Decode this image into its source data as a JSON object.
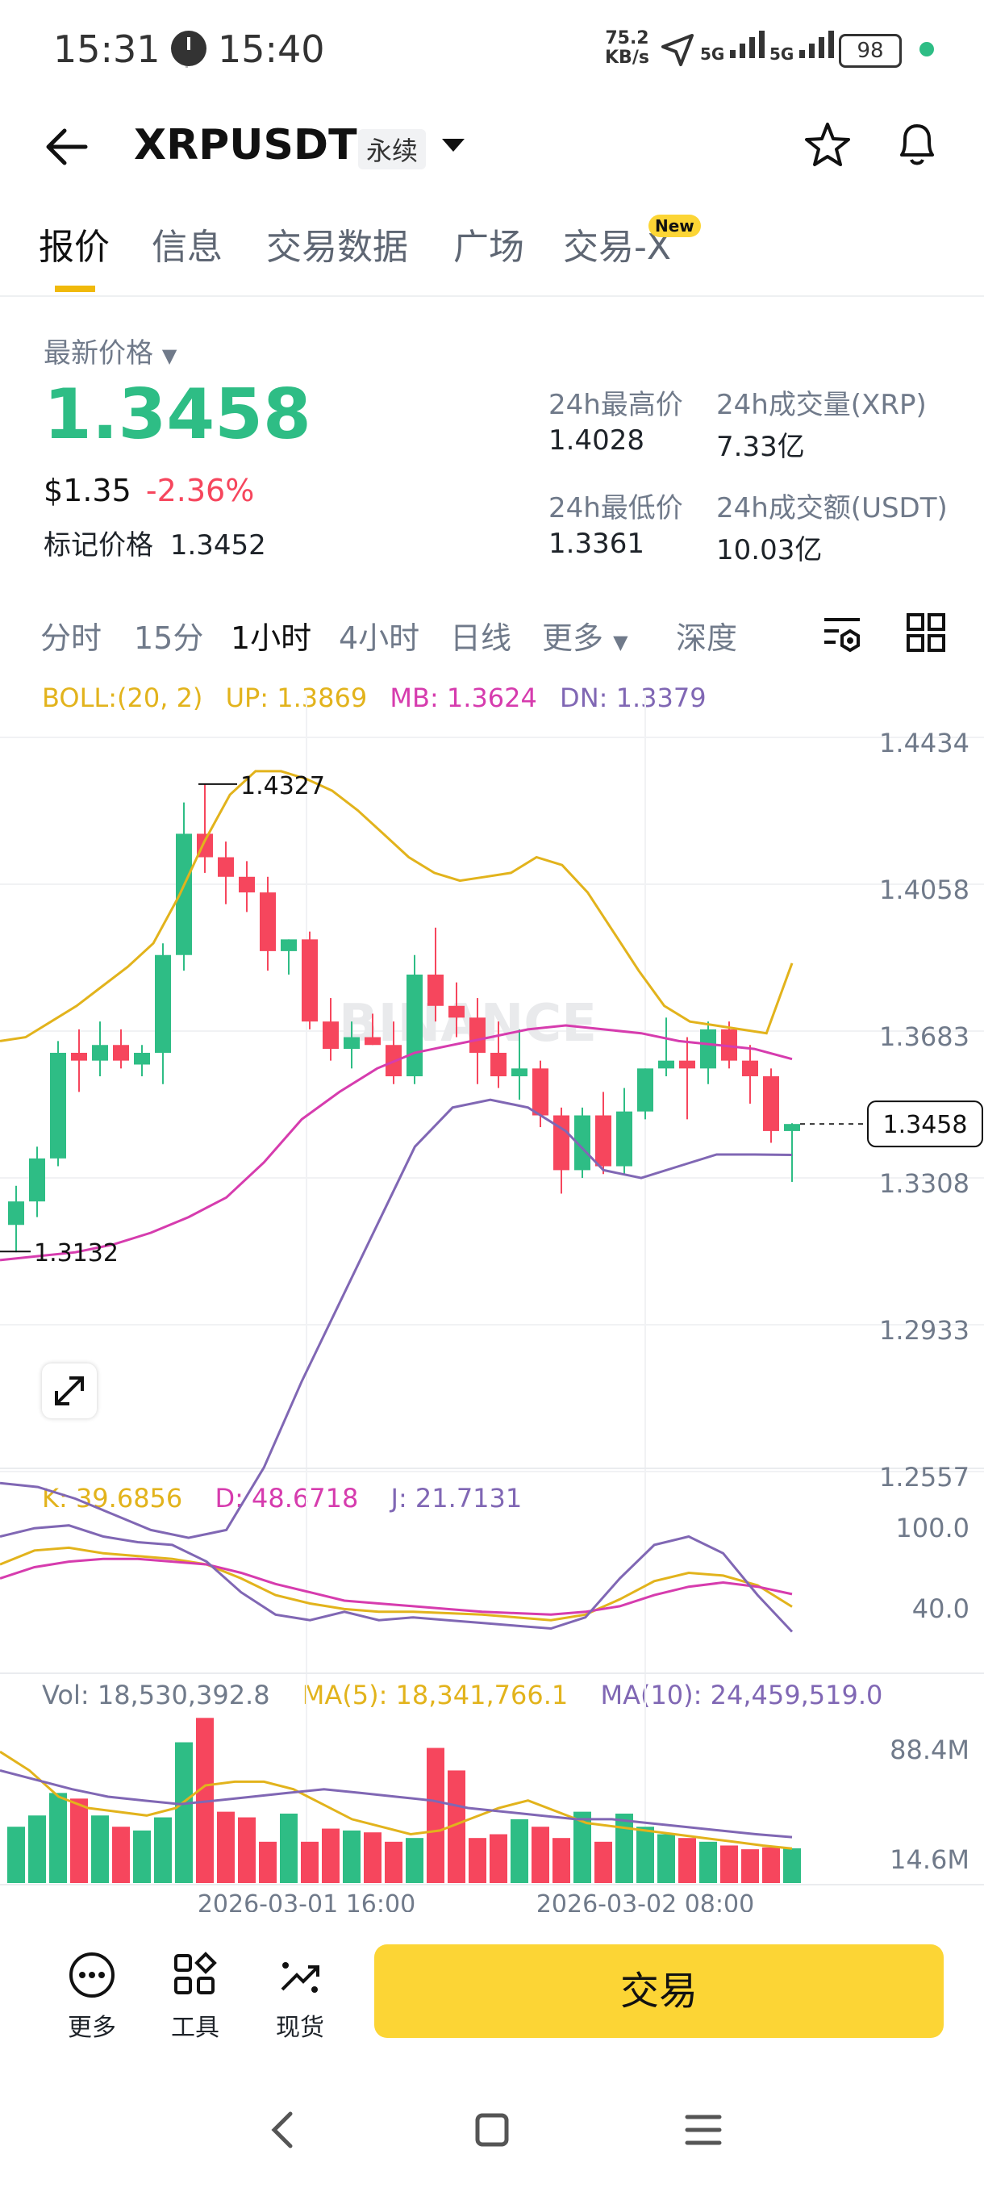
{
  "status": {
    "time_left": "15:31",
    "time_right": "15:40",
    "net_speed": "75.2",
    "net_unit": "KB/s",
    "sig1": "5G",
    "sig2": "5G",
    "battery": "98"
  },
  "header": {
    "pair": "XRPUSDT",
    "contract": "永续"
  },
  "tabs": [
    {
      "label": "报价"
    },
    {
      "label": "信息"
    },
    {
      "label": "交易数据"
    },
    {
      "label": "广场"
    },
    {
      "label": "交易-X"
    }
  ],
  "new_badge": "New",
  "price": {
    "latest_label": "最新价格",
    "last": "1.3458",
    "usd": "$1.35",
    "change": "-2.36%",
    "mark_label": "标记价格",
    "mark": "1.3452",
    "high_label": "24h最高价",
    "high": "1.4028",
    "low_label": "24h最低价",
    "low": "1.3361",
    "vol_label": "24h成交量(XRP)",
    "vol": "7.33亿",
    "turnover_label": "24h成交额(USDT)",
    "turnover": "10.03亿"
  },
  "intervals": [
    {
      "label": "分时"
    },
    {
      "label": "15分"
    },
    {
      "label": "1小时"
    },
    {
      "label": "4小时"
    },
    {
      "label": "日线"
    },
    {
      "label": "更多"
    },
    {
      "label": "深度"
    }
  ],
  "boll": {
    "label": "BOLL:(20, 2)",
    "up": "UP: 1.3869",
    "mb": "MB: 1.3624",
    "dn": "DN: 1.3379"
  },
  "kdj": {
    "k": "K: 39.6856",
    "d": "D: 48.6718",
    "j": "J: 21.7131"
  },
  "vol": {
    "vol": "Vol: 18,530,392.8",
    "ma5": "MA(5): 18,341,766.1",
    "ma10": "MA(10): 24,459,519.0"
  },
  "watermark": "BINANCE",
  "colors": {
    "up": "#2ebd85",
    "down": "#f6465d",
    "boll_up": "#e2b31c",
    "boll_mb": "#d63cae",
    "boll_dn": "#8067b4",
    "accent": "#fcd535"
  },
  "chart_data": [
    {
      "type": "candlestick",
      "title": "",
      "y_ticks": [
        "1.4434",
        "1.4058",
        "1.3683",
        "1.3308",
        "1.2933",
        "1.2557"
      ],
      "ylim": [
        1.2557,
        1.4434
      ],
      "last_price_label": "1.3458",
      "annotations": {
        "high": "1.4327",
        "low": "1.3132"
      },
      "x_ticks": [
        "2026-03-01 16:00",
        "2026-03-02 08:00"
      ],
      "candles": [
        {
          "o": 1.32,
          "h": 1.33,
          "l": 1.313,
          "c": 1.326
        },
        {
          "o": 1.326,
          "h": 1.34,
          "l": 1.322,
          "c": 1.337
        },
        {
          "o": 1.337,
          "h": 1.367,
          "l": 1.335,
          "c": 1.364
        },
        {
          "o": 1.364,
          "h": 1.37,
          "l": 1.354,
          "c": 1.362
        },
        {
          "o": 1.362,
          "h": 1.372,
          "l": 1.358,
          "c": 1.366
        },
        {
          "o": 1.366,
          "h": 1.37,
          "l": 1.36,
          "c": 1.362
        },
        {
          "o": 1.361,
          "h": 1.366,
          "l": 1.358,
          "c": 1.364
        },
        {
          "o": 1.364,
          "h": 1.392,
          "l": 1.356,
          "c": 1.389
        },
        {
          "o": 1.389,
          "h": 1.428,
          "l": 1.385,
          "c": 1.42
        },
        {
          "o": 1.42,
          "h": 1.4327,
          "l": 1.41,
          "c": 1.414
        },
        {
          "o": 1.414,
          "h": 1.418,
          "l": 1.402,
          "c": 1.409
        },
        {
          "o": 1.409,
          "h": 1.413,
          "l": 1.4,
          "c": 1.405
        },
        {
          "o": 1.405,
          "h": 1.409,
          "l": 1.385,
          "c": 1.39
        },
        {
          "o": 1.39,
          "h": 1.393,
          "l": 1.384,
          "c": 1.393
        },
        {
          "o": 1.393,
          "h": 1.395,
          "l": 1.37,
          "c": 1.372
        },
        {
          "o": 1.372,
          "h": 1.378,
          "l": 1.362,
          "c": 1.365
        },
        {
          "o": 1.365,
          "h": 1.372,
          "l": 1.36,
          "c": 1.368
        },
        {
          "o": 1.368,
          "h": 1.374,
          "l": 1.366,
          "c": 1.366
        },
        {
          "o": 1.366,
          "h": 1.372,
          "l": 1.356,
          "c": 1.358
        },
        {
          "o": 1.358,
          "h": 1.389,
          "l": 1.356,
          "c": 1.384
        },
        {
          "o": 1.384,
          "h": 1.396,
          "l": 1.372,
          "c": 1.376
        },
        {
          "o": 1.376,
          "h": 1.382,
          "l": 1.368,
          "c": 1.373
        },
        {
          "o": 1.373,
          "h": 1.378,
          "l": 1.356,
          "c": 1.364
        },
        {
          "o": 1.364,
          "h": 1.372,
          "l": 1.355,
          "c": 1.358
        },
        {
          "o": 1.358,
          "h": 1.37,
          "l": 1.352,
          "c": 1.36
        },
        {
          "o": 1.36,
          "h": 1.362,
          "l": 1.345,
          "c": 1.348
        },
        {
          "o": 1.348,
          "h": 1.35,
          "l": 1.328,
          "c": 1.334
        },
        {
          "o": 1.334,
          "h": 1.35,
          "l": 1.332,
          "c": 1.348
        },
        {
          "o": 1.348,
          "h": 1.354,
          "l": 1.333,
          "c": 1.335
        },
        {
          "o": 1.335,
          "h": 1.355,
          "l": 1.333,
          "c": 1.349
        },
        {
          "o": 1.349,
          "h": 1.36,
          "l": 1.347,
          "c": 1.36
        },
        {
          "o": 1.36,
          "h": 1.373,
          "l": 1.358,
          "c": 1.362
        },
        {
          "o": 1.362,
          "h": 1.368,
          "l": 1.347,
          "c": 1.36
        },
        {
          "o": 1.36,
          "h": 1.372,
          "l": 1.356,
          "c": 1.37
        },
        {
          "o": 1.37,
          "h": 1.372,
          "l": 1.36,
          "c": 1.362
        },
        {
          "o": 1.362,
          "h": 1.366,
          "l": 1.351,
          "c": 1.358
        },
        {
          "o": 1.358,
          "h": 1.36,
          "l": 1.341,
          "c": 1.344
        },
        {
          "o": 1.344,
          "h": 1.346,
          "l": 1.331,
          "c": 1.3458
        }
      ],
      "boll_up": [
        1.367,
        1.368,
        1.372,
        1.376,
        1.381,
        1.386,
        1.392,
        1.404,
        1.418,
        1.43,
        1.436,
        1.436,
        1.434,
        1.431,
        1.426,
        1.42,
        1.414,
        1.41,
        1.408,
        1.409,
        1.41,
        1.414,
        1.412,
        1.405,
        1.395,
        1.385,
        1.376,
        1.372,
        1.371,
        1.37,
        1.369,
        1.3869
      ],
      "boll_mb": [
        1.311,
        1.312,
        1.313,
        1.315,
        1.318,
        1.322,
        1.327,
        1.336,
        1.347,
        1.354,
        1.36,
        1.364,
        1.366,
        1.368,
        1.37,
        1.371,
        1.37,
        1.369,
        1.367,
        1.366,
        1.365,
        1.3624
      ],
      "boll_dn": [
        1.254,
        1.253,
        1.25,
        1.246,
        1.242,
        1.24,
        1.242,
        1.258,
        1.28,
        1.3,
        1.32,
        1.34,
        1.35,
        1.352,
        1.35,
        1.344,
        1.334,
        1.332,
        1.335,
        1.338,
        1.338,
        1.3379
      ]
    },
    {
      "type": "line",
      "title": "KDJ",
      "y_ticks": [
        "100.0",
        "40.0"
      ],
      "series": [
        {
          "name": "K",
          "values": [
            70,
            80,
            82,
            78,
            76,
            74,
            70,
            60,
            48,
            42,
            38,
            36,
            36,
            35,
            34,
            32,
            30,
            34,
            45,
            58,
            64,
            62,
            55,
            39.6856
          ]
        },
        {
          "name": "D",
          "values": [
            60,
            68,
            72,
            74,
            74,
            72,
            70,
            64,
            56,
            50,
            44,
            42,
            40,
            38,
            36,
            35,
            34,
            36,
            40,
            48,
            54,
            57,
            54,
            48.6718
          ]
        },
        {
          "name": "J",
          "values": [
            90,
            96,
            98,
            90,
            86,
            84,
            72,
            50,
            34,
            30,
            36,
            30,
            32,
            30,
            28,
            26,
            24,
            32,
            60,
            84,
            90,
            78,
            48,
            21.7131
          ]
        }
      ]
    },
    {
      "type": "bar",
      "title": "Vol",
      "y_ticks": [
        "88.4M",
        "14.6M"
      ],
      "values": [
        30,
        36,
        48,
        45,
        36,
        30,
        28,
        35,
        75,
        88,
        38,
        35,
        22,
        37,
        22,
        29,
        28,
        27,
        22,
        24,
        72,
        60,
        24,
        26,
        34,
        30,
        24,
        38,
        22,
        37,
        30,
        26,
        24,
        22,
        20,
        18,
        19,
        18.5
      ],
      "series": [
        {
          "name": "MA(5)",
          "values": [
            70,
            60,
            46,
            40,
            38,
            36,
            40,
            52,
            54,
            54,
            50,
            42,
            34,
            30,
            26,
            28,
            34,
            40,
            44,
            38,
            32,
            30,
            28,
            26,
            24,
            22,
            20,
            18.34
          ]
        },
        {
          "name": "MA(10)",
          "values": [
            60,
            55,
            50,
            46,
            44,
            42,
            44,
            46,
            48,
            50,
            48,
            46,
            44,
            40,
            38,
            36,
            34,
            34,
            32,
            30,
            28,
            26,
            24.46
          ]
        }
      ]
    }
  ]
}
